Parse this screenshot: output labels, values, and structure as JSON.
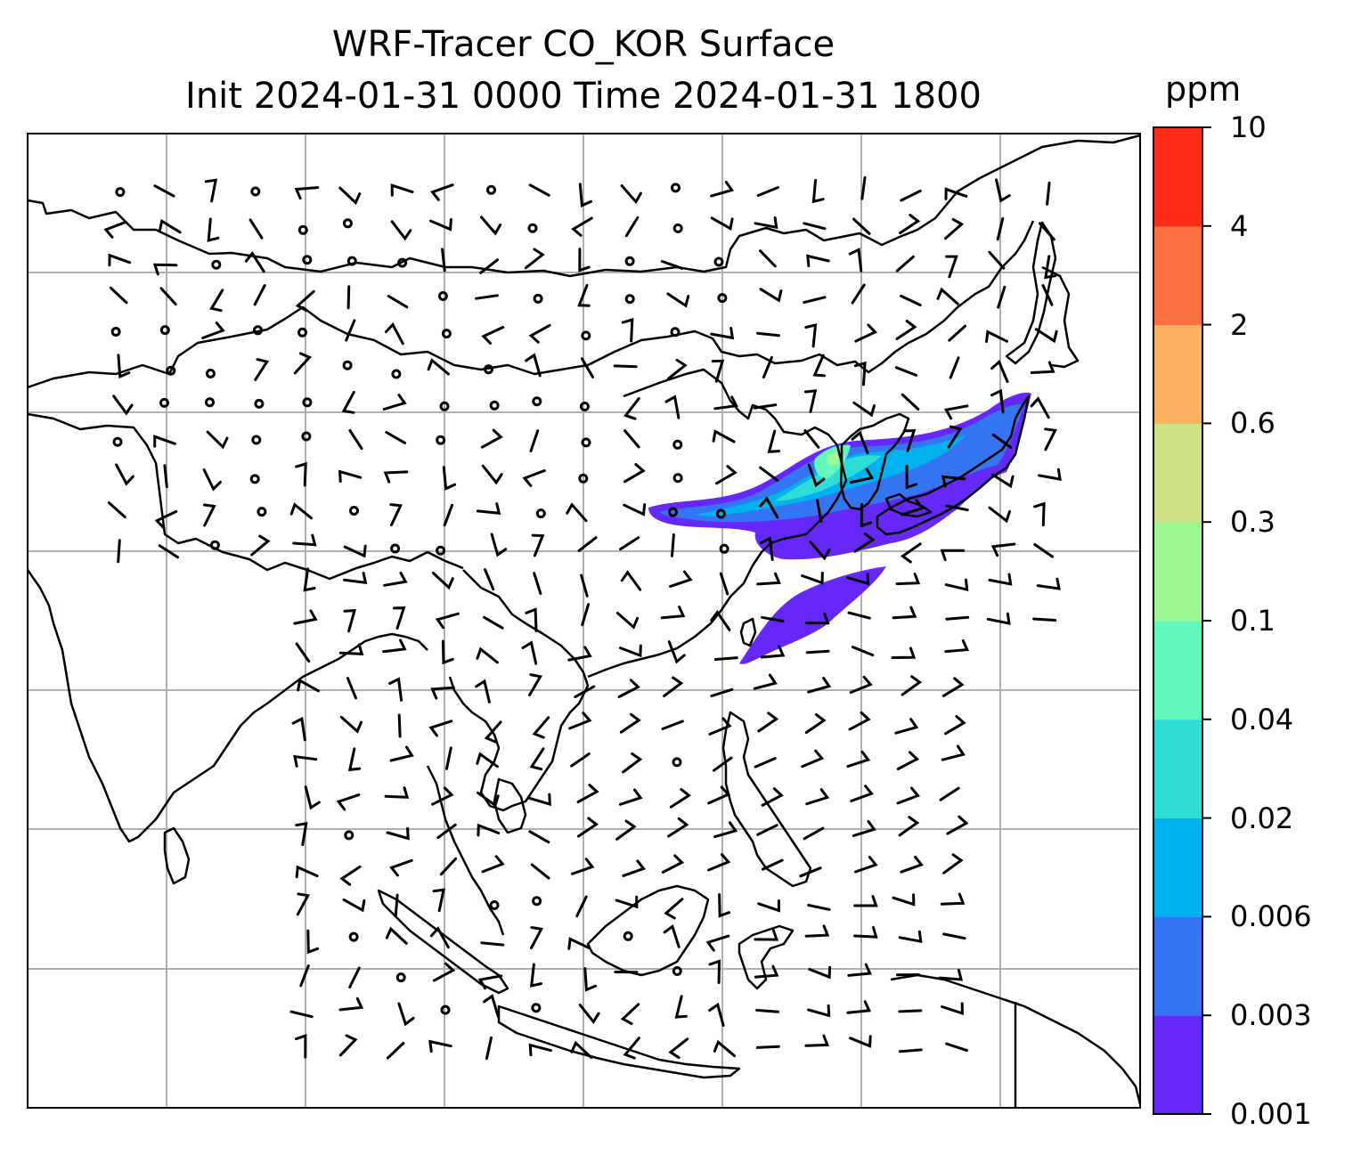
{
  "title": {
    "line1": "WRF-Tracer CO_KOR Surface",
    "line2": "Init 2024-01-31 0000 Time 2024-01-31 1800"
  },
  "colorbar": {
    "unit": "ppm",
    "levels": [
      "0.001",
      "0.003",
      "0.006",
      "0.02",
      "0.04",
      "0.1",
      "0.3",
      "0.6",
      "2",
      "4",
      "10"
    ],
    "colors": [
      "#6528f8",
      "#3375f2",
      "#00b2ee",
      "#2fddd6",
      "#63f9be",
      "#9cf893",
      "#cee184",
      "#fdb060",
      "#fd7141",
      "#fe2b17"
    ]
  },
  "map": {
    "gridlines": true,
    "coastline_color": "#000000",
    "gridline_color": "#b0b0b0",
    "tracer_plume_levels": [
      "0.001",
      "0.003",
      "0.006",
      "0.02",
      "0.04",
      "0.1"
    ],
    "wind_symbols": "barbs"
  }
}
